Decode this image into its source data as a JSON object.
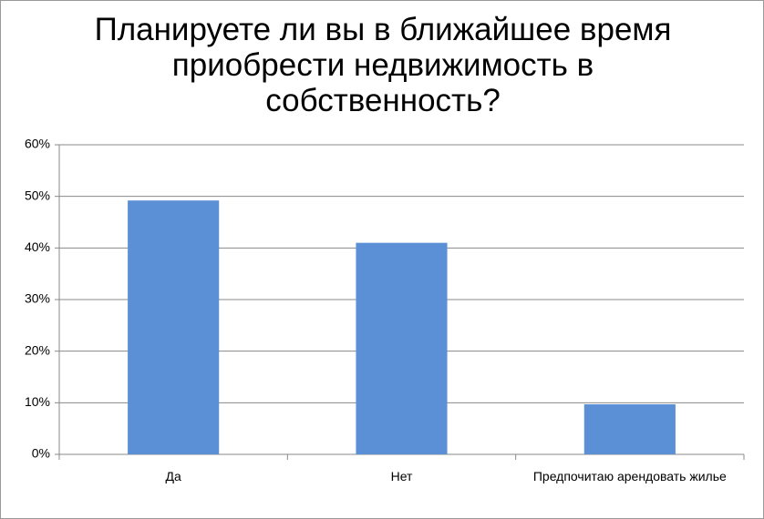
{
  "chart_data": {
    "type": "bar",
    "title": "Планируете ли вы в ближайшее время приобрести недвижимость в собственность?",
    "categories": [
      "Да",
      "Нет",
      "Предпочитаю арендовать жилье"
    ],
    "values": [
      49.2,
      41,
      9.7
    ],
    "color": "#5b8fd6",
    "ylim": [
      0,
      60
    ],
    "yticks": [
      {
        "value": 0,
        "label": "0%"
      },
      {
        "value": 10,
        "label": "10%"
      },
      {
        "value": 20,
        "label": "20%"
      },
      {
        "value": 30,
        "label": "30%"
      },
      {
        "value": 40,
        "label": "40%"
      },
      {
        "value": 50,
        "label": "50%"
      },
      {
        "value": 60,
        "label": "60%"
      }
    ],
    "grid": true
  }
}
